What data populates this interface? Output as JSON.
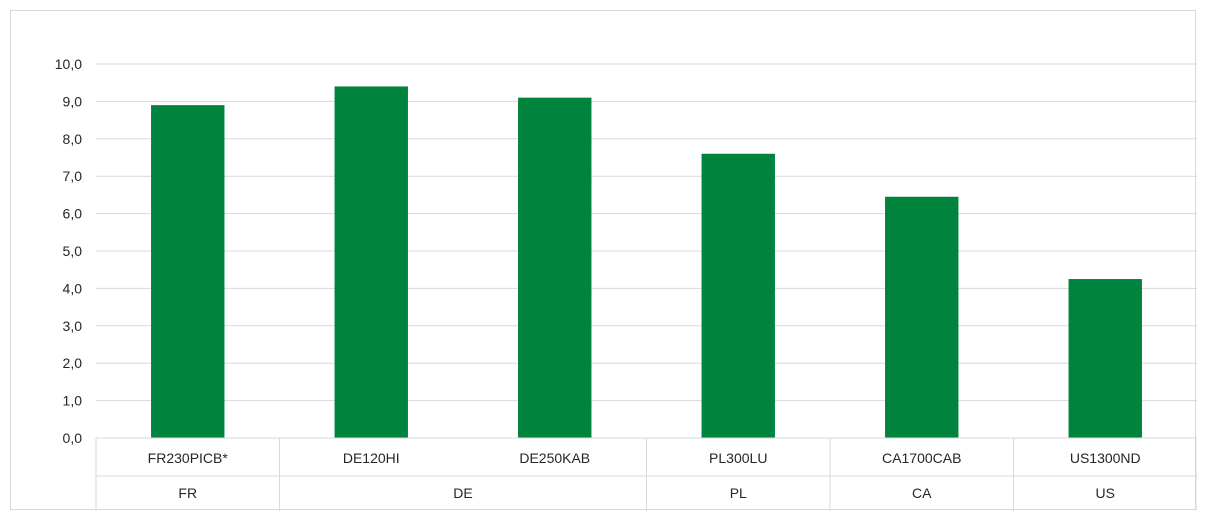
{
  "chart_data": {
    "type": "bar",
    "title": "",
    "xlabel": "",
    "ylabel": "",
    "ylim": [
      0,
      10
    ],
    "ytick_step": 1,
    "ytick_labels": [
      "0,0",
      "1,0",
      "2,0",
      "3,0",
      "4,0",
      "5,0",
      "6,0",
      "7,0",
      "8,0",
      "9,0",
      "10,0"
    ],
    "grid": true,
    "legend": "none",
    "bar_color": "#00843D",
    "grid_color": "#d9d9d9",
    "categories": [
      "FR230PICB*",
      "DE120HI",
      "DE250KAB",
      "PL300LU",
      "CA1700CAB",
      "US1300ND"
    ],
    "groups": [
      {
        "label": "FR",
        "count": 1
      },
      {
        "label": "DE",
        "count": 2
      },
      {
        "label": "PL",
        "count": 1
      },
      {
        "label": "CA",
        "count": 1
      },
      {
        "label": "US",
        "count": 1
      }
    ],
    "values": [
      8.9,
      9.4,
      9.1,
      7.6,
      6.45,
      4.25
    ]
  }
}
